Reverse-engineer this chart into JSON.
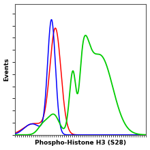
{
  "ylabel": "Events",
  "xlabel": "Phospho-Histone H3 (S28)",
  "background_color": "#ffffff",
  "plot_bg": "#ffffff",
  "line_colors": {
    "blue": "#0000ff",
    "red": "#ff0000",
    "green": "#00cc00"
  },
  "border_color": "#aaaaaa",
  "xlim": [
    0.0,
    1.0
  ],
  "ylim": [
    0.0,
    1.08
  ],
  "axis_label_fontsize": 6.5,
  "xlabel_fontweight": "bold",
  "ylabel_fontweight": "bold"
}
